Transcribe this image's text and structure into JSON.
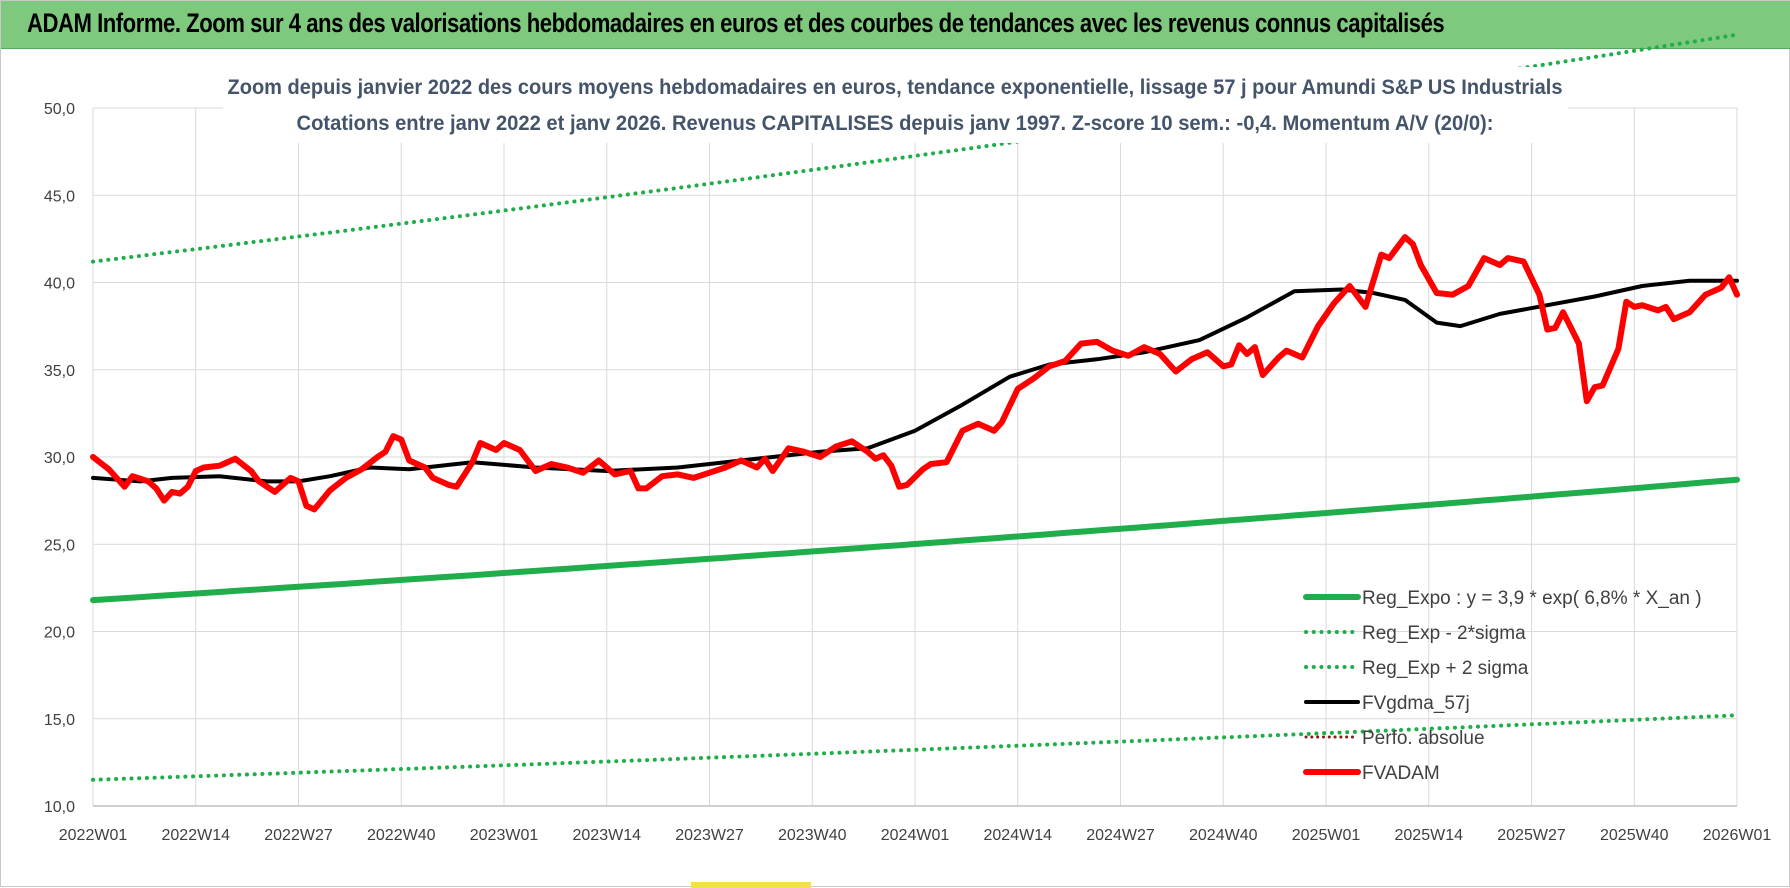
{
  "banner": {
    "title": "ADAM Informe. Zoom sur 4 ans des valorisations hebdomadaires en euros et des courbes de tendances avec les revenus connus capitalisés"
  },
  "chart_data": {
    "type": "line",
    "title": "Zoom depuis janvier 2022 des cours moyens hebdomadaires en euros, tendance exponentielle, lissage 57 j pour Amundi S&P US Industrials",
    "subtitle": "Cotations entre janv 2022 et janv 2026. Revenus CAPITALISES depuis janv 1997. Z-score 10 sem.: -0,4. Momentum A/V (20/0):",
    "xlabel": "",
    "ylabel": "",
    "x_index_range": [
      0,
      208
    ],
    "ylim": [
      10,
      50
    ],
    "y_ticks": [
      "10,0",
      "15,0",
      "20,0",
      "25,0",
      "30,0",
      "35,0",
      "40,0",
      "45,0",
      "50,0"
    ],
    "y_tick_values": [
      10,
      15,
      20,
      25,
      30,
      35,
      40,
      45,
      50
    ],
    "x_ticks": [
      "2022W01",
      "2022W14",
      "2022W27",
      "2022W40",
      "2023W01",
      "2023W14",
      "2023W27",
      "2023W40",
      "2024W01",
      "2024W14",
      "2024W27",
      "2024W40",
      "2025W01",
      "2025W14",
      "2025W27",
      "2025W40",
      "2026W01"
    ],
    "x_tick_index": [
      0,
      13,
      26,
      39,
      52,
      65,
      78,
      91,
      104,
      117,
      130,
      143,
      156,
      169,
      182,
      195,
      208
    ],
    "grid": true,
    "legend_position": "bottom-right",
    "series": [
      {
        "name": "Reg_Expo : y = 3,9 * exp( 6,8% *  X_an )",
        "color": "#1fae4b",
        "style": "solid",
        "width": 6,
        "start": 21.8,
        "end": 28.7
      },
      {
        "name": "Reg_Exp - 2*sigma",
        "color": "#1fae4b",
        "style": "dotted",
        "width": 4,
        "start": 11.5,
        "end": 15.2
      },
      {
        "name": "Reg_Exp + 2 sigma",
        "color": "#1fae4b",
        "style": "dotted",
        "width": 4,
        "start": 41.2,
        "end": 54.2
      },
      {
        "name": "FVgdma_57j",
        "color": "#000000",
        "style": "solid",
        "width": 4,
        "points": [
          [
            0,
            28.8
          ],
          [
            6,
            28.6
          ],
          [
            10,
            28.8
          ],
          [
            16,
            28.9
          ],
          [
            22,
            28.6
          ],
          [
            26,
            28.6
          ],
          [
            30,
            28.9
          ],
          [
            35,
            29.4
          ],
          [
            40,
            29.3
          ],
          [
            48,
            29.7
          ],
          [
            56,
            29.4
          ],
          [
            65,
            29.2
          ],
          [
            74,
            29.4
          ],
          [
            80,
            29.7
          ],
          [
            86,
            30.0
          ],
          [
            92,
            30.3
          ],
          [
            98,
            30.5
          ],
          [
            104,
            31.5
          ],
          [
            110,
            33.0
          ],
          [
            116,
            34.6
          ],
          [
            121,
            35.3
          ],
          [
            127,
            35.6
          ],
          [
            133,
            36.0
          ],
          [
            140,
            36.7
          ],
          [
            146,
            38.0
          ],
          [
            152,
            39.5
          ],
          [
            158,
            39.6
          ],
          [
            162,
            39.4
          ],
          [
            166,
            39.0
          ],
          [
            170,
            37.7
          ],
          [
            173,
            37.5
          ],
          [
            178,
            38.2
          ],
          [
            184,
            38.7
          ],
          [
            190,
            39.2
          ],
          [
            196,
            39.8
          ],
          [
            202,
            40.1
          ],
          [
            208,
            40.1
          ]
        ]
      },
      {
        "name": "Perfo. absolue",
        "color": "#8b1a1a",
        "style": "dotted",
        "width": 3
      },
      {
        "name": "FVADAM",
        "color": "#ff0000",
        "style": "solid",
        "width": 6,
        "points": [
          [
            0,
            30.0
          ],
          [
            2,
            29.3
          ],
          [
            4,
            28.3
          ],
          [
            5,
            28.9
          ],
          [
            7,
            28.6
          ],
          [
            8,
            28.2
          ],
          [
            9,
            27.5
          ],
          [
            10,
            28.0
          ],
          [
            11,
            27.9
          ],
          [
            12,
            28.3
          ],
          [
            13,
            29.2
          ],
          [
            14,
            29.4
          ],
          [
            16,
            29.5
          ],
          [
            18,
            29.9
          ],
          [
            20,
            29.2
          ],
          [
            21,
            28.6
          ],
          [
            23,
            28.0
          ],
          [
            25,
            28.8
          ],
          [
            26,
            28.6
          ],
          [
            27,
            27.2
          ],
          [
            28,
            27.0
          ],
          [
            30,
            28.1
          ],
          [
            32,
            28.8
          ],
          [
            34,
            29.3
          ],
          [
            36,
            30.0
          ],
          [
            37,
            30.3
          ],
          [
            38,
            31.2
          ],
          [
            39,
            31.0
          ],
          [
            40,
            29.8
          ],
          [
            42,
            29.4
          ],
          [
            43,
            28.8
          ],
          [
            45,
            28.4
          ],
          [
            46,
            28.3
          ],
          [
            48,
            29.7
          ],
          [
            49,
            30.8
          ],
          [
            51,
            30.4
          ],
          [
            52,
            30.8
          ],
          [
            54,
            30.4
          ],
          [
            56,
            29.2
          ],
          [
            58,
            29.6
          ],
          [
            60,
            29.4
          ],
          [
            62,
            29.1
          ],
          [
            64,
            29.8
          ],
          [
            66,
            29.0
          ],
          [
            68,
            29.2
          ],
          [
            69,
            28.2
          ],
          [
            70,
            28.2
          ],
          [
            72,
            28.9
          ],
          [
            74,
            29.0
          ],
          [
            76,
            28.8
          ],
          [
            78,
            29.1
          ],
          [
            80,
            29.4
          ],
          [
            82,
            29.8
          ],
          [
            84,
            29.4
          ],
          [
            85,
            29.9
          ],
          [
            86,
            29.2
          ],
          [
            88,
            30.5
          ],
          [
            90,
            30.3
          ],
          [
            92,
            30.0
          ],
          [
            94,
            30.6
          ],
          [
            96,
            30.9
          ],
          [
            98,
            30.3
          ],
          [
            99,
            29.9
          ],
          [
            100,
            30.1
          ],
          [
            101,
            29.5
          ],
          [
            102,
            28.3
          ],
          [
            103,
            28.4
          ],
          [
            105,
            29.3
          ],
          [
            106,
            29.6
          ],
          [
            108,
            29.7
          ],
          [
            110,
            31.5
          ],
          [
            112,
            31.9
          ],
          [
            114,
            31.5
          ],
          [
            115,
            32.0
          ],
          [
            117,
            33.9
          ],
          [
            119,
            34.5
          ],
          [
            121,
            35.2
          ],
          [
            123,
            35.5
          ],
          [
            125,
            36.5
          ],
          [
            127,
            36.6
          ],
          [
            129,
            36.1
          ],
          [
            131,
            35.8
          ],
          [
            133,
            36.3
          ],
          [
            135,
            35.9
          ],
          [
            137,
            34.9
          ],
          [
            139,
            35.6
          ],
          [
            141,
            36.0
          ],
          [
            143,
            35.2
          ],
          [
            144,
            35.3
          ],
          [
            145,
            36.4
          ],
          [
            146,
            35.9
          ],
          [
            147,
            36.3
          ],
          [
            148,
            34.7
          ],
          [
            150,
            35.7
          ],
          [
            151,
            36.1
          ],
          [
            153,
            35.7
          ],
          [
            155,
            37.5
          ],
          [
            157,
            38.8
          ],
          [
            159,
            39.8
          ],
          [
            161,
            38.6
          ],
          [
            163,
            41.6
          ],
          [
            164,
            41.4
          ],
          [
            166,
            42.6
          ],
          [
            167,
            42.2
          ],
          [
            168,
            41.0
          ],
          [
            170,
            39.4
          ],
          [
            172,
            39.3
          ],
          [
            174,
            39.8
          ],
          [
            176,
            41.4
          ],
          [
            178,
            41.0
          ],
          [
            179,
            41.4
          ],
          [
            181,
            41.2
          ],
          [
            183,
            39.3
          ],
          [
            184,
            37.3
          ],
          [
            185,
            37.4
          ],
          [
            186,
            38.3
          ],
          [
            188,
            36.5
          ],
          [
            189,
            33.2
          ],
          [
            190,
            34.0
          ],
          [
            191,
            34.1
          ],
          [
            193,
            36.2
          ],
          [
            194,
            38.9
          ],
          [
            195,
            38.6
          ],
          [
            196,
            38.7
          ],
          [
            198,
            38.4
          ],
          [
            199,
            38.6
          ],
          [
            200,
            37.9
          ],
          [
            202,
            38.3
          ],
          [
            204,
            39.3
          ],
          [
            206,
            39.7
          ],
          [
            207,
            40.3
          ],
          [
            208,
            39.3
          ]
        ]
      }
    ]
  }
}
